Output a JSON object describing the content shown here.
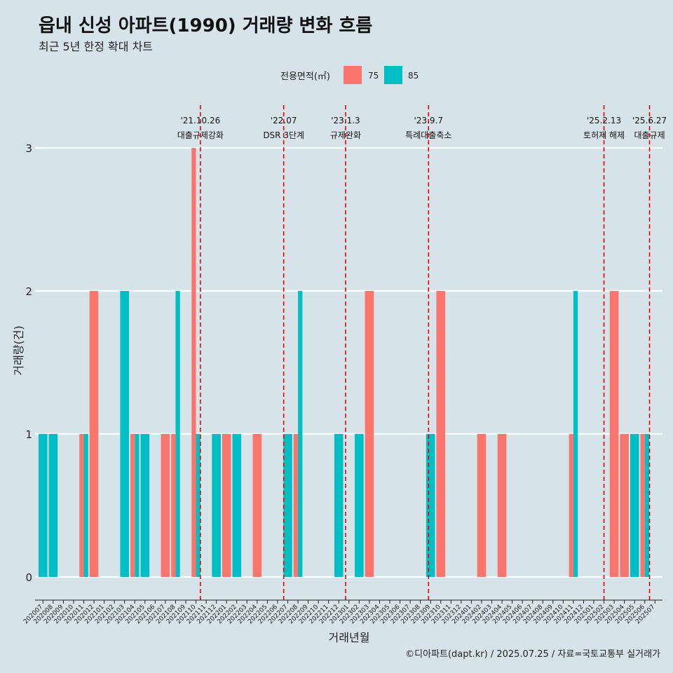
{
  "title": "읍내 신성 아파트(1990) 거래량 변화 흐름",
  "subtitle": "최근 5년 한정 확대 차트",
  "caption": "©디아파트(dapt.kr) / 2025.07.25 / 자료=국토교통부 실거래가",
  "colors": {
    "background": "#d6e4ea",
    "s75": "#f8766d",
    "s85": "#00bfc4",
    "event_line": "#ee0000",
    "grid": "#ffffff"
  },
  "chart_data": {
    "type": "bar",
    "xlabel": "거래년월",
    "ylabel": "거래량(건)",
    "ylim": [
      0,
      3
    ],
    "yticks": [
      0,
      1,
      2,
      3
    ],
    "legend": {
      "title": "전용면적(㎡)",
      "position": "top"
    },
    "categories": [
      "202007",
      "202008",
      "202009",
      "202010",
      "202011",
      "202012",
      "202101",
      "202102",
      "202103",
      "202104",
      "202105",
      "202106",
      "202107",
      "202108",
      "202109",
      "202110",
      "202111",
      "202112",
      "202201",
      "202202",
      "202203",
      "202204",
      "202205",
      "202206",
      "202207",
      "202208",
      "202209",
      "202210",
      "202211",
      "202212",
      "202301",
      "202302",
      "202303",
      "202304",
      "202305",
      "202306",
      "202307",
      "202308",
      "202309",
      "202310",
      "202311",
      "202312",
      "202401",
      "202402",
      "202403",
      "202404",
      "202405",
      "202406",
      "202407",
      "202408",
      "202409",
      "202410",
      "202411",
      "202412",
      "202501",
      "202502",
      "202503",
      "202504",
      "202505",
      "202506",
      "202507"
    ],
    "series": [
      {
        "name": "75",
        "values": [
          0,
          0,
          0,
          0,
          1,
          2,
          0,
          0,
          0,
          1,
          0,
          0,
          1,
          1,
          0,
          3,
          0,
          0,
          1,
          0,
          0,
          1,
          0,
          0,
          0,
          1,
          0,
          0,
          0,
          0,
          0,
          0,
          2,
          0,
          0,
          0,
          0,
          0,
          0,
          2,
          0,
          0,
          0,
          1,
          0,
          1,
          0,
          0,
          0,
          0,
          0,
          0,
          1,
          0,
          0,
          0,
          2,
          1,
          0,
          1,
          0
        ]
      },
      {
        "name": "85",
        "values": [
          1,
          1,
          0,
          0,
          1,
          0,
          0,
          0,
          2,
          1,
          1,
          0,
          0,
          2,
          0,
          1,
          0,
          1,
          0,
          1,
          0,
          0,
          0,
          0,
          1,
          2,
          0,
          0,
          0,
          1,
          0,
          1,
          0,
          0,
          0,
          0,
          0,
          0,
          1,
          0,
          0,
          0,
          0,
          0,
          0,
          0,
          0,
          0,
          0,
          0,
          0,
          0,
          2,
          0,
          0,
          0,
          0,
          0,
          1,
          1,
          0
        ]
      }
    ],
    "events": [
      {
        "date": "'21.10.26",
        "label": "대출규제강화",
        "month": "202110",
        "day": 26
      },
      {
        "date": "'22.07",
        "label": "DSR 3단계",
        "month": "202207",
        "day": 1
      },
      {
        "date": "'23.1.3",
        "label": "규제완화",
        "month": "202301",
        "day": 3
      },
      {
        "date": "'23.9.7",
        "label": "특례대출축소",
        "month": "202309",
        "day": 7
      },
      {
        "date": "'25.2.13",
        "label": "토허제 해제",
        "month": "202502",
        "day": 13
      },
      {
        "date": "'25.6.27",
        "label": "대출규제",
        "month": "202506",
        "day": 27
      }
    ]
  }
}
